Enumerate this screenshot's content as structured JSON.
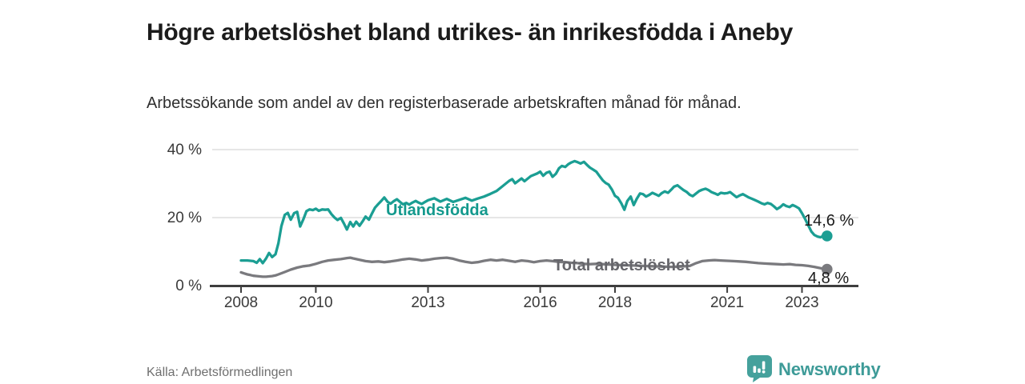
{
  "header": {
    "title": "Högre arbetslöshet bland utrikes- än inrikesfödda i Aneby",
    "subtitle": "Arbetssökande som andel av den registerbaserade arbetskraften månad för månad."
  },
  "footer": {
    "source": "Källa: Arbetsförmedlingen",
    "brand": "Newsworthy",
    "brand_icon": "bar-chart-speech-bubble-icon"
  },
  "colors": {
    "accent_teal": "#1b9e93",
    "series_gray": "#7a7a7e",
    "teal_label": "#13998d",
    "gray_label": "#66666b",
    "title_text": "#1b1b1b",
    "grid": "#d8d8d8",
    "axis": "#3e3e3e",
    "tick_text": "#3a3a3a",
    "value_label_text": "#1a1a1a",
    "muted_text": "#6f6f6f",
    "brand_teal": "#45a19c"
  },
  "chart_data": {
    "type": "line",
    "x_axis": {
      "ticks": [
        {
          "t": 2008,
          "label": "2008"
        },
        {
          "t": 2010,
          "label": "2010"
        },
        {
          "t": 2013,
          "label": "2013"
        },
        {
          "t": 2016,
          "label": "2016"
        },
        {
          "t": 2018,
          "label": "2018"
        },
        {
          "t": 2021,
          "label": "2021"
        },
        {
          "t": 2023,
          "label": "2023"
        }
      ]
    },
    "y_axis": {
      "ticks": [
        {
          "v": 0,
          "label": "0 %"
        },
        {
          "v": 20,
          "label": "20 %"
        },
        {
          "v": 40,
          "label": "40 %"
        }
      ],
      "range": [
        0,
        42
      ]
    },
    "grid": "horizontal-only",
    "legend_position": "inline-on-line",
    "series": [
      {
        "name": "Utlandsfödda",
        "color": "#1b9e93",
        "end_value": 14.6,
        "end_label": "14,6 %",
        "points": [
          [
            2008.0,
            7.4
          ],
          [
            2008.08,
            7.4
          ],
          [
            2008.17,
            7.4
          ],
          [
            2008.25,
            7.3
          ],
          [
            2008.33,
            7.2
          ],
          [
            2008.42,
            6.7
          ],
          [
            2008.5,
            7.8
          ],
          [
            2008.58,
            6.6
          ],
          [
            2008.67,
            8.0
          ],
          [
            2008.75,
            9.6
          ],
          [
            2008.83,
            8.4
          ],
          [
            2008.92,
            9.2
          ],
          [
            2009.0,
            12.5
          ],
          [
            2009.08,
            17.5
          ],
          [
            2009.17,
            20.8
          ],
          [
            2009.25,
            21.4
          ],
          [
            2009.33,
            19.4
          ],
          [
            2009.42,
            21.3
          ],
          [
            2009.5,
            21.7
          ],
          [
            2009.58,
            17.4
          ],
          [
            2009.67,
            19.6
          ],
          [
            2009.75,
            21.9
          ],
          [
            2009.83,
            22.4
          ],
          [
            2009.92,
            22.2
          ],
          [
            2010.0,
            22.6
          ],
          [
            2010.08,
            22.0
          ],
          [
            2010.17,
            22.4
          ],
          [
            2010.25,
            22.3
          ],
          [
            2010.33,
            22.4
          ],
          [
            2010.42,
            21.0
          ],
          [
            2010.5,
            20.0
          ],
          [
            2010.58,
            19.3
          ],
          [
            2010.67,
            19.9
          ],
          [
            2010.75,
            18.3
          ],
          [
            2010.83,
            16.5
          ],
          [
            2010.92,
            18.7
          ],
          [
            2011.0,
            17.4
          ],
          [
            2011.08,
            18.8
          ],
          [
            2011.17,
            17.6
          ],
          [
            2011.25,
            18.9
          ],
          [
            2011.33,
            20.3
          ],
          [
            2011.42,
            19.4
          ],
          [
            2011.5,
            21.2
          ],
          [
            2011.58,
            22.9
          ],
          [
            2011.67,
            24.0
          ],
          [
            2011.75,
            24.9
          ],
          [
            2011.83,
            25.9
          ],
          [
            2011.92,
            24.6
          ],
          [
            2012.0,
            24.1
          ],
          [
            2012.08,
            24.8
          ],
          [
            2012.17,
            25.4
          ],
          [
            2012.25,
            24.6
          ],
          [
            2012.33,
            23.9
          ],
          [
            2012.42,
            24.3
          ],
          [
            2012.5,
            23.8
          ],
          [
            2012.58,
            24.4
          ],
          [
            2012.67,
            24.9
          ],
          [
            2012.75,
            24.4
          ],
          [
            2012.83,
            24.0
          ],
          [
            2012.92,
            24.6
          ],
          [
            2013.0,
            25.1
          ],
          [
            2013.17,
            25.7
          ],
          [
            2013.33,
            24.7
          ],
          [
            2013.5,
            25.5
          ],
          [
            2013.67,
            24.6
          ],
          [
            2013.83,
            25.2
          ],
          [
            2014.0,
            25.8
          ],
          [
            2014.17,
            25.0
          ],
          [
            2014.33,
            25.6
          ],
          [
            2014.5,
            26.2
          ],
          [
            2014.67,
            27.0
          ],
          [
            2014.83,
            27.8
          ],
          [
            2015.0,
            29.3
          ],
          [
            2015.17,
            30.8
          ],
          [
            2015.25,
            31.3
          ],
          [
            2015.33,
            30.1
          ],
          [
            2015.5,
            31.5
          ],
          [
            2015.58,
            30.7
          ],
          [
            2015.75,
            32.2
          ],
          [
            2015.92,
            33.0
          ],
          [
            2016.0,
            33.5
          ],
          [
            2016.08,
            32.3
          ],
          [
            2016.17,
            33.2
          ],
          [
            2016.25,
            33.5
          ],
          [
            2016.33,
            32.0
          ],
          [
            2016.42,
            32.9
          ],
          [
            2016.5,
            34.5
          ],
          [
            2016.58,
            35.2
          ],
          [
            2016.67,
            34.9
          ],
          [
            2016.75,
            35.7
          ],
          [
            2016.83,
            36.2
          ],
          [
            2016.92,
            36.6
          ],
          [
            2017.0,
            36.3
          ],
          [
            2017.08,
            35.9
          ],
          [
            2017.17,
            36.4
          ],
          [
            2017.25,
            35.5
          ],
          [
            2017.33,
            34.7
          ],
          [
            2017.42,
            34.1
          ],
          [
            2017.5,
            33.5
          ],
          [
            2017.58,
            32.3
          ],
          [
            2017.67,
            31.0
          ],
          [
            2017.75,
            30.2
          ],
          [
            2017.83,
            29.7
          ],
          [
            2017.92,
            28.2
          ],
          [
            2018.0,
            26.4
          ],
          [
            2018.08,
            25.8
          ],
          [
            2018.17,
            24.2
          ],
          [
            2018.25,
            22.3
          ],
          [
            2018.33,
            24.9
          ],
          [
            2018.42,
            26.2
          ],
          [
            2018.5,
            23.7
          ],
          [
            2018.58,
            25.5
          ],
          [
            2018.67,
            27.1
          ],
          [
            2018.75,
            26.9
          ],
          [
            2018.83,
            26.2
          ],
          [
            2018.92,
            26.7
          ],
          [
            2019.0,
            27.3
          ],
          [
            2019.08,
            26.9
          ],
          [
            2019.17,
            26.4
          ],
          [
            2019.25,
            27.2
          ],
          [
            2019.33,
            27.7
          ],
          [
            2019.42,
            27.3
          ],
          [
            2019.5,
            28.2
          ],
          [
            2019.58,
            29.1
          ],
          [
            2019.67,
            29.5
          ],
          [
            2019.75,
            28.8
          ],
          [
            2019.83,
            28.1
          ],
          [
            2019.92,
            27.5
          ],
          [
            2020.0,
            26.7
          ],
          [
            2020.08,
            26.3
          ],
          [
            2020.17,
            27.1
          ],
          [
            2020.25,
            27.8
          ],
          [
            2020.33,
            28.2
          ],
          [
            2020.42,
            28.5
          ],
          [
            2020.5,
            28.1
          ],
          [
            2020.58,
            27.5
          ],
          [
            2020.67,
            27.1
          ],
          [
            2020.75,
            26.7
          ],
          [
            2020.83,
            27.3
          ],
          [
            2020.92,
            27.1
          ],
          [
            2021.0,
            27.2
          ],
          [
            2021.08,
            27.5
          ],
          [
            2021.17,
            26.7
          ],
          [
            2021.25,
            26.0
          ],
          [
            2021.33,
            26.5
          ],
          [
            2021.42,
            26.9
          ],
          [
            2021.5,
            26.4
          ],
          [
            2021.58,
            25.9
          ],
          [
            2021.67,
            25.5
          ],
          [
            2021.75,
            25.1
          ],
          [
            2021.83,
            24.7
          ],
          [
            2021.92,
            24.2
          ],
          [
            2022.0,
            23.9
          ],
          [
            2022.08,
            24.3
          ],
          [
            2022.17,
            24.0
          ],
          [
            2022.25,
            23.3
          ],
          [
            2022.33,
            22.5
          ],
          [
            2022.42,
            23.1
          ],
          [
            2022.5,
            23.9
          ],
          [
            2022.58,
            23.4
          ],
          [
            2022.67,
            23.1
          ],
          [
            2022.75,
            23.7
          ],
          [
            2022.83,
            23.3
          ],
          [
            2022.92,
            22.7
          ],
          [
            2023.0,
            21.3
          ],
          [
            2023.08,
            19.7
          ],
          [
            2023.17,
            17.7
          ],
          [
            2023.25,
            15.9
          ],
          [
            2023.33,
            14.9
          ],
          [
            2023.42,
            14.4
          ],
          [
            2023.5,
            14.2
          ],
          [
            2023.58,
            14.7
          ],
          [
            2023.67,
            14.6
          ]
        ]
      },
      {
        "name": "Total arbetslöshet",
        "color": "#7a7a7e",
        "end_value": 4.8,
        "end_label": "4,8 %",
        "points": [
          [
            2008.0,
            3.9
          ],
          [
            2008.08,
            3.6
          ],
          [
            2008.17,
            3.3
          ],
          [
            2008.25,
            3.1
          ],
          [
            2008.33,
            2.9
          ],
          [
            2008.42,
            2.8
          ],
          [
            2008.5,
            2.7
          ],
          [
            2008.58,
            2.6
          ],
          [
            2008.67,
            2.6
          ],
          [
            2008.75,
            2.7
          ],
          [
            2008.83,
            2.8
          ],
          [
            2008.92,
            3.0
          ],
          [
            2009.0,
            3.3
          ],
          [
            2009.17,
            4.0
          ],
          [
            2009.33,
            4.7
          ],
          [
            2009.5,
            5.3
          ],
          [
            2009.67,
            5.7
          ],
          [
            2009.83,
            5.9
          ],
          [
            2010.0,
            6.4
          ],
          [
            2010.17,
            7.0
          ],
          [
            2010.33,
            7.4
          ],
          [
            2010.5,
            7.6
          ],
          [
            2010.67,
            7.8
          ],
          [
            2010.83,
            8.1
          ],
          [
            2010.92,
            8.2
          ],
          [
            2011.0,
            8.0
          ],
          [
            2011.17,
            7.6
          ],
          [
            2011.33,
            7.2
          ],
          [
            2011.5,
            7.0
          ],
          [
            2011.67,
            7.1
          ],
          [
            2011.83,
            6.9
          ],
          [
            2012.0,
            7.1
          ],
          [
            2012.17,
            7.4
          ],
          [
            2012.33,
            7.7
          ],
          [
            2012.5,
            7.9
          ],
          [
            2012.67,
            7.7
          ],
          [
            2012.83,
            7.4
          ],
          [
            2013.0,
            7.6
          ],
          [
            2013.17,
            7.9
          ],
          [
            2013.33,
            8.1
          ],
          [
            2013.5,
            8.2
          ],
          [
            2013.67,
            7.9
          ],
          [
            2013.83,
            7.4
          ],
          [
            2014.0,
            7.0
          ],
          [
            2014.17,
            6.7
          ],
          [
            2014.33,
            6.9
          ],
          [
            2014.5,
            7.3
          ],
          [
            2014.67,
            7.6
          ],
          [
            2014.83,
            7.4
          ],
          [
            2015.0,
            7.6
          ],
          [
            2015.17,
            7.3
          ],
          [
            2015.33,
            7.0
          ],
          [
            2015.5,
            7.4
          ],
          [
            2015.67,
            7.2
          ],
          [
            2015.83,
            6.9
          ],
          [
            2016.0,
            7.2
          ],
          [
            2016.17,
            7.4
          ],
          [
            2016.33,
            7.2
          ],
          [
            2016.5,
            7.0
          ],
          [
            2016.67,
            6.9
          ],
          [
            2016.83,
            6.7
          ],
          [
            2017.0,
            6.6
          ],
          [
            2017.17,
            6.4
          ],
          [
            2017.33,
            6.3
          ],
          [
            2017.5,
            6.4
          ],
          [
            2017.67,
            6.3
          ],
          [
            2017.83,
            6.2
          ],
          [
            2018.0,
            6.1
          ],
          [
            2018.25,
            6.0
          ],
          [
            2018.5,
            5.9
          ],
          [
            2018.75,
            5.8
          ],
          [
            2019.0,
            5.7
          ],
          [
            2019.25,
            5.6
          ],
          [
            2019.5,
            5.5
          ],
          [
            2019.75,
            5.6
          ],
          [
            2020.0,
            5.8
          ],
          [
            2020.17,
            6.6
          ],
          [
            2020.33,
            7.2
          ],
          [
            2020.5,
            7.4
          ],
          [
            2020.67,
            7.5
          ],
          [
            2020.83,
            7.4
          ],
          [
            2021.0,
            7.3
          ],
          [
            2021.17,
            7.2
          ],
          [
            2021.33,
            7.1
          ],
          [
            2021.5,
            7.0
          ],
          [
            2021.67,
            6.8
          ],
          [
            2021.83,
            6.6
          ],
          [
            2022.0,
            6.5
          ],
          [
            2022.17,
            6.4
          ],
          [
            2022.33,
            6.3
          ],
          [
            2022.5,
            6.2
          ],
          [
            2022.67,
            6.3
          ],
          [
            2022.83,
            6.1
          ],
          [
            2023.0,
            6.0
          ],
          [
            2023.17,
            5.8
          ],
          [
            2023.33,
            5.5
          ],
          [
            2023.5,
            5.1
          ],
          [
            2023.58,
            4.9
          ],
          [
            2023.67,
            4.8
          ]
        ]
      }
    ]
  }
}
